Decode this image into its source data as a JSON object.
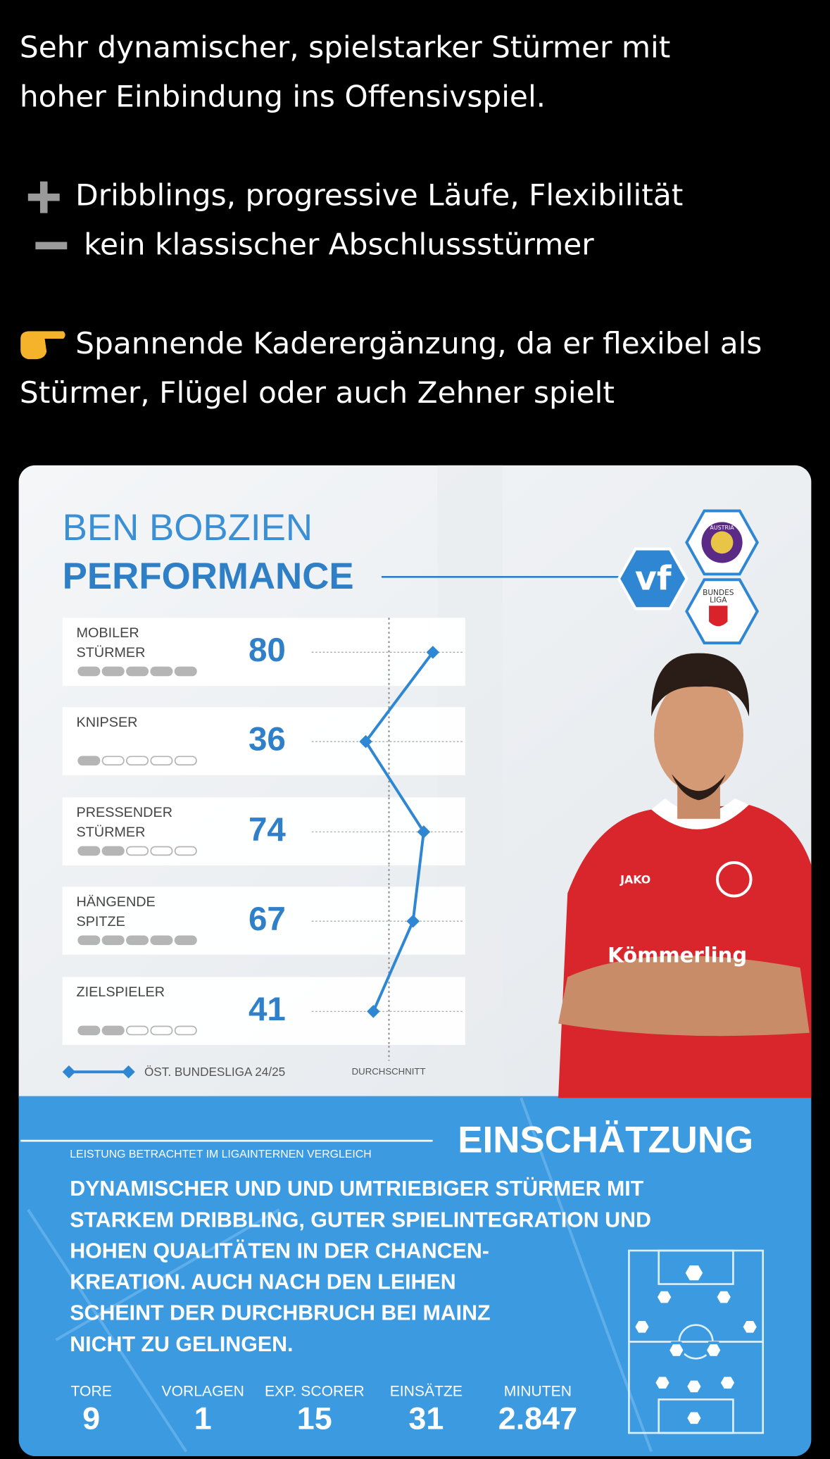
{
  "tweet": {
    "intro": [
      "Sehr dynamischer, spielstarker Stürmer mit",
      "hoher Einbindung ins Offensivspiel."
    ],
    "pros": "Dribblings, progressive Läufe, Flexibilität",
    "cons": "kein klassischer Abschlussstürmer",
    "conclusion": [
      "Spannende Kaderergänzung, da er flexibel als",
      "Stürmer, Flügel oder auch Zehner spielt"
    ]
  },
  "card": {
    "name": "BEN BOBZIEN",
    "title": "PERFORMANCE",
    "logo": "vf",
    "club_badge": "AUSTRIA",
    "league_badge": [
      "BUNDES",
      "LIGA"
    ],
    "jersey": {
      "brand": "JAKO",
      "sponsor": "Kömmerling"
    },
    "xlim": [
      0,
      100
    ],
    "ratings": [
      {
        "label": [
          "MOBILER",
          "STÜRMER"
        ],
        "value": 80,
        "dots": 5
      },
      {
        "label": [
          "KNIPSER"
        ],
        "value": 36,
        "dots": 1
      },
      {
        "label": [
          "PRESSENDER",
          "STÜRMER"
        ],
        "value": 74,
        "dots": 2
      },
      {
        "label": [
          "HÄNGENDE",
          "SPITZE"
        ],
        "value": 67,
        "dots": 5
      },
      {
        "label": [
          "ZIELSPIELER"
        ],
        "value": 41,
        "dots": 2
      }
    ],
    "legend": {
      "series": "ÖST. BUNDESLIGA 24/25",
      "average": "DURCHSCHNITT"
    },
    "note": "LEISTUNG BETRACHTET IM LIGAINTERNEN VERGLEICH",
    "assessment_title": "EINSCHÄTZUNG",
    "assessment": [
      "DYNAMISCHER UND UND UMTRIEBIGER STÜRMER MIT",
      "STARKEM DRIBBLING, GUTER SPIELINTEGRATION UND",
      "HOHEN QUALITÄTEN IN DER CHANCEN-",
      "KREATION. AUCH NACH DEN LEIHEN",
      "SCHEINT DER DURCHBRUCH BEI MAINZ",
      "NICHT ZU GELINGEN."
    ],
    "stats": [
      {
        "label": "TORE",
        "value": 9
      },
      {
        "label": "VORLAGEN",
        "value": 1
      },
      {
        "label": "EXP. SCORER",
        "value": 15
      },
      {
        "label": "EINSÄTZE",
        "value": 31
      },
      {
        "label": "MINUTEN",
        "value": {
          "value": 2847,
          "label": "2.847"
        }
      }
    ]
  }
}
